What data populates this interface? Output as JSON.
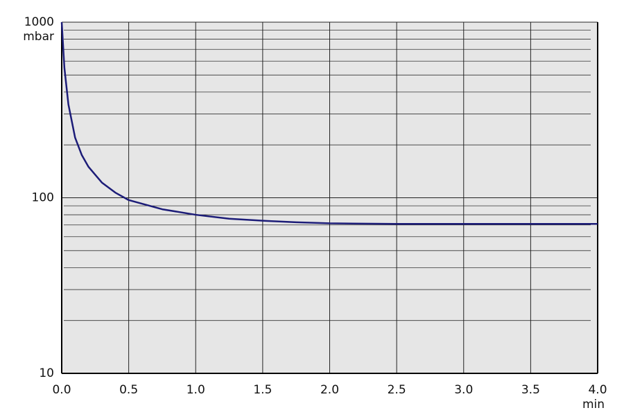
{
  "chart_data": {
    "type": "line",
    "y_unit": "mbar",
    "x_unit": "min",
    "log_y": true,
    "grid": true,
    "x": [
      0,
      0.02,
      0.05,
      0.1,
      0.15,
      0.2,
      0.3,
      0.4,
      0.5,
      0.75,
      1.0,
      1.25,
      1.5,
      1.75,
      2.0,
      2.5,
      3.0,
      3.5,
      4.0
    ],
    "series": [
      {
        "color": "#1c1c78",
        "values": [
          1000,
          550,
          340,
          220,
          175,
          150,
          122,
          107,
          97,
          86,
          80,
          76,
          74,
          72.5,
          71.5,
          71,
          71,
          71,
          71
        ]
      }
    ],
    "xlim": [
      0,
      4
    ],
    "xticks": [
      {
        "value": 0,
        "label": "0.0"
      },
      {
        "value": 0.5,
        "label": "0.5"
      },
      {
        "value": 1,
        "label": "1.0"
      },
      {
        "value": 1.5,
        "label": "1.5"
      },
      {
        "value": 2,
        "label": "2.0"
      },
      {
        "value": 2.5,
        "label": "2.5"
      },
      {
        "value": 3,
        "label": "3.0"
      },
      {
        "value": 3.5,
        "label": "3.5"
      },
      {
        "value": 4,
        "label": "4.0"
      }
    ],
    "ylim": [
      10,
      1000
    ],
    "yticks": [
      10,
      100,
      1000
    ],
    "yminorticks": [
      20,
      30,
      40,
      50,
      60,
      70,
      80,
      90,
      200,
      300,
      400,
      500,
      600,
      700,
      800,
      900
    ]
  }
}
